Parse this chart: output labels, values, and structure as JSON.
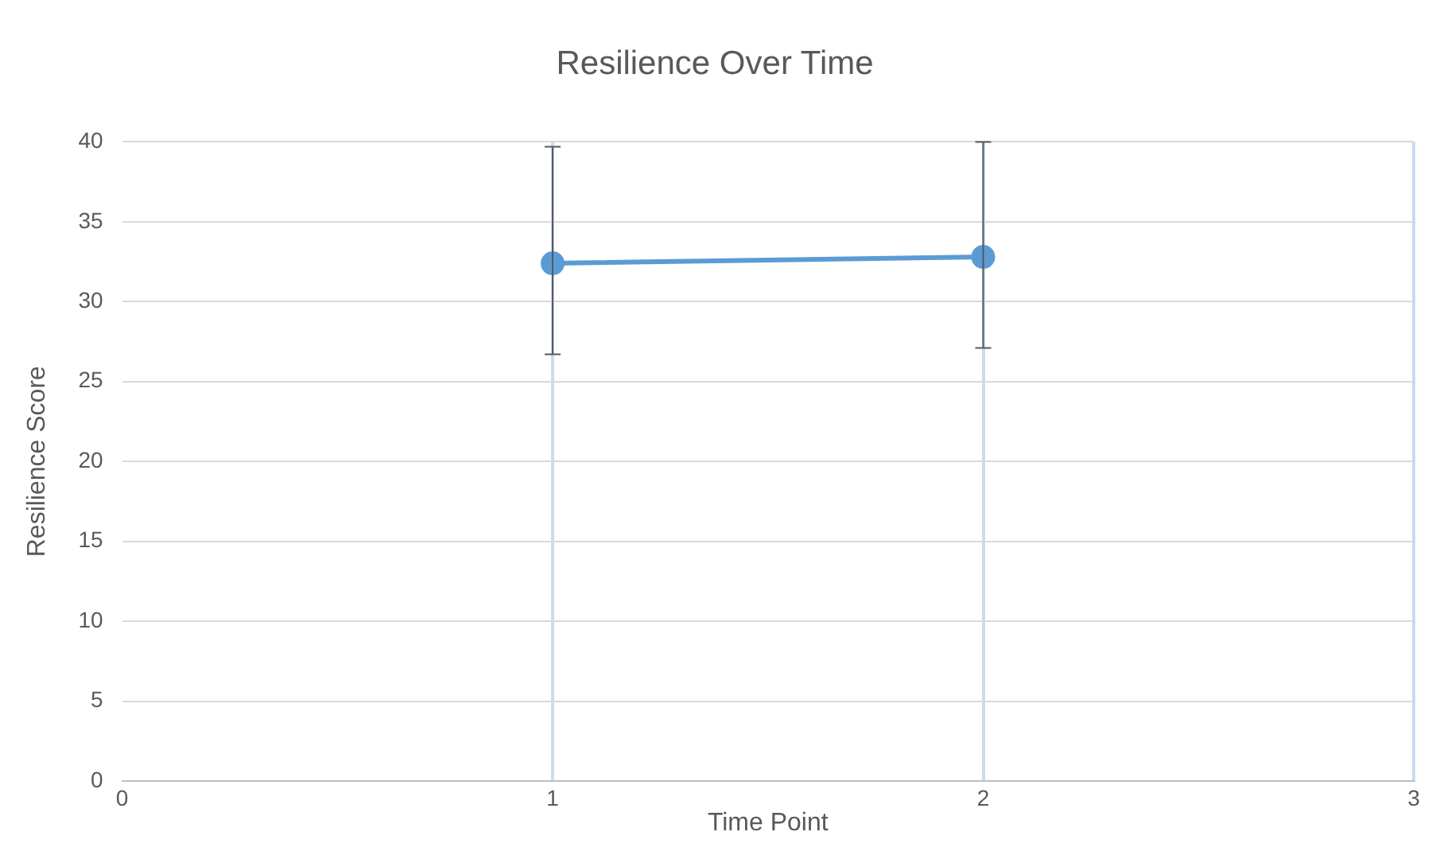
{
  "chart_data": {
    "type": "line",
    "title": "Resilience Over Time",
    "xlabel": "Time Point",
    "ylabel": "Resilience Score",
    "x": [
      1,
      2
    ],
    "series": [
      {
        "color": "#5b9bd5",
        "values": [
          32.4,
          32.8
        ],
        "errors": [
          [
            26.7,
            39.7
          ],
          [
            27.1,
            40
          ]
        ]
      }
    ],
    "xlim": [
      0,
      3
    ],
    "xticks": [
      0,
      1,
      2,
      3
    ],
    "ylim": [
      0,
      40
    ],
    "yticks": [
      0,
      5,
      10,
      15,
      20,
      25,
      30,
      35,
      40
    ],
    "grid": true,
    "marker": "circle",
    "line_style": "solid",
    "legend": false
  }
}
